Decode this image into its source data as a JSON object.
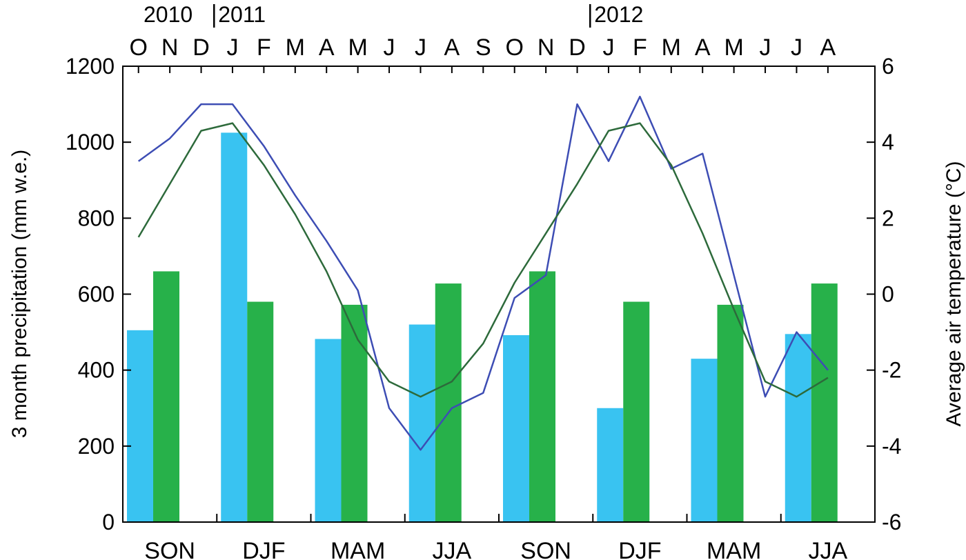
{
  "chart_data": {
    "type": "bar",
    "top_axis": {
      "years": [
        {
          "label": "2010",
          "month_index": 0,
          "divider": false
        },
        {
          "label": "2011",
          "month_index": 3,
          "divider": true
        },
        {
          "label": "2012",
          "month_index": 15,
          "divider": true
        }
      ],
      "months": [
        "O",
        "N",
        "D",
        "J",
        "F",
        "M",
        "A",
        "M",
        "J",
        "J",
        "A",
        "S",
        "O",
        "N",
        "D",
        "J",
        "F",
        "M",
        "A",
        "M",
        "J",
        "J",
        "A"
      ]
    },
    "categories": [
      "SON",
      "DJF",
      "MAM",
      "JJA",
      "SON",
      "DJF",
      "MAM",
      "JJA"
    ],
    "ylabel": "3 month precipitation (mm w.e.)",
    "y2label": "Average air temperature (°C)",
    "ylim": [
      0,
      1200
    ],
    "y2lim": [
      -6,
      6
    ],
    "yticks": [
      0,
      200,
      400,
      600,
      800,
      1000,
      1200
    ],
    "y2ticks": [
      -6,
      -4,
      -2,
      0,
      2,
      4,
      6
    ],
    "bar_series": [
      {
        "color": "#39c3f1",
        "values": [
          505,
          1025,
          482,
          520,
          492,
          300,
          430,
          495
        ]
      },
      {
        "color": "#27b14a",
        "values": [
          660,
          580,
          572,
          628,
          660,
          580,
          572,
          628
        ]
      }
    ],
    "line_series": [
      {
        "color": "#3d4db4",
        "axis": "right",
        "values": [
          3.5,
          4.1,
          5.0,
          5.0,
          3.9,
          2.6,
          1.4,
          0.1,
          -3.0,
          -4.1,
          -3.0,
          -2.6,
          -0.1,
          0.5,
          5.0,
          3.5,
          5.2,
          3.3,
          3.7,
          0.5,
          -2.7,
          -1.0,
          -2.0
        ]
      },
      {
        "color": "#2d6a3b",
        "axis": "right",
        "values": [
          1.5,
          2.9,
          4.3,
          4.5,
          3.4,
          2.1,
          0.6,
          -1.2,
          -2.3,
          -2.7,
          -2.3,
          -1.3,
          0.3,
          1.6,
          2.9,
          4.3,
          4.5,
          3.4,
          1.6,
          -0.4,
          -2.3,
          -2.7,
          -2.2
        ]
      }
    ]
  }
}
